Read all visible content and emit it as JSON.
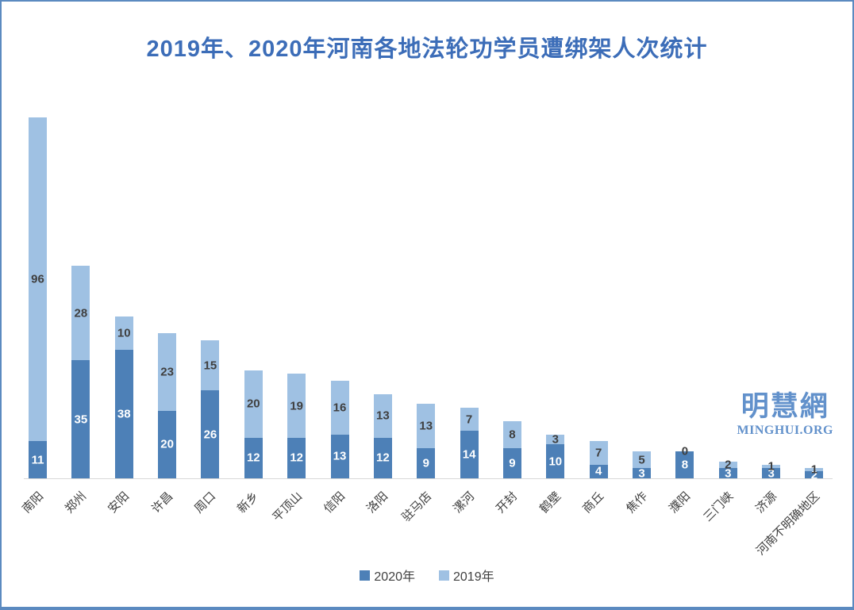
{
  "title": {
    "text": "2019年、2020年河南各地法轮功学员遭绑架人次统计"
  },
  "watermark": {
    "cn": "明慧網",
    "en": "MINGHUI.ORG",
    "color": "#6291cb"
  },
  "legend": {
    "items": [
      {
        "label": "2020年"
      },
      {
        "label": "2019年"
      }
    ]
  },
  "colors": {
    "title": "#3c6db8",
    "axis_line": "#d9d9d9",
    "frame_border": "#5b8ac0",
    "label_dark": "#404040",
    "label_on_bar": "#ffffff",
    "series_2020": "#4d80b7",
    "series_2019": "#9fc1e3"
  },
  "chart_data": {
    "type": "bar",
    "stacked": true,
    "title": "2019年、2020年河南各地法轮功学员遭绑架人次统计",
    "categories": [
      "南阳",
      "郑州",
      "安阳",
      "许昌",
      "周口",
      "新乡",
      "平顶山",
      "信阳",
      "洛阳",
      "驻马店",
      "漯河",
      "开封",
      "鹤壁",
      "商丘",
      "焦作",
      "濮阳",
      "三门峡",
      "济源",
      "河南不明确地区"
    ],
    "series": [
      {
        "name": "2020年",
        "color": "#4d80b7",
        "values": [
          11,
          35,
          38,
          20,
          26,
          12,
          12,
          13,
          12,
          9,
          14,
          9,
          10,
          4,
          3,
          8,
          3,
          3,
          2
        ]
      },
      {
        "name": "2019年",
        "color": "#9fc1e3",
        "values": [
          96,
          28,
          10,
          23,
          15,
          20,
          19,
          16,
          13,
          13,
          7,
          8,
          3,
          7,
          5,
          0,
          2,
          1,
          1
        ]
      }
    ],
    "ylim": [
      0,
      107
    ],
    "xlabel": "",
    "ylabel": "",
    "gridlines": false,
    "data_labels": true,
    "legend_position": "bottom"
  }
}
